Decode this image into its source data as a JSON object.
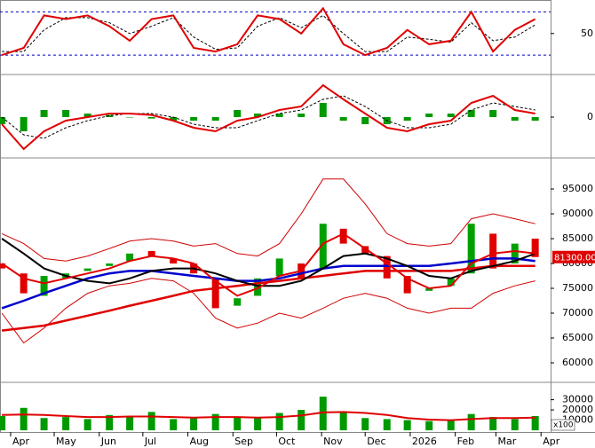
{
  "chart_data": {
    "type": "stock",
    "x": [
      -6,
      9,
      23,
      38,
      53,
      68,
      82,
      97,
      112,
      126,
      141,
      156,
      170,
      185,
      200,
      215,
      229,
      244,
      259,
      273,
      288,
      303,
      317,
      332,
      347,
      361
    ],
    "xlim": [
      -7.3,
      371.6
    ],
    "xticks": [
      {
        "value": 0,
        "label": "Apr"
      },
      {
        "value": 30,
        "label": "May"
      },
      {
        "value": 61,
        "label": "Jun"
      },
      {
        "value": 91,
        "label": "Jul"
      },
      {
        "value": 122,
        "label": "Aug"
      },
      {
        "value": 153,
        "label": "Sep"
      },
      {
        "value": 183,
        "label": "Oct"
      },
      {
        "value": 214,
        "label": "Nov"
      },
      {
        "value": 244,
        "label": "Dec"
      },
      {
        "value": 275,
        "label": "2026"
      },
      {
        "value": 306,
        "label": "Feb"
      },
      {
        "value": 334,
        "label": "Mar"
      },
      {
        "value": 365,
        "label": "Apr"
      }
    ],
    "panels": [
      {
        "type": "line",
        "ylim": [
          -2,
          94
        ],
        "yticks": [
          50
        ],
        "levels": [
          20,
          80
        ],
        "level_color": "#0000cc",
        "series": [
          {
            "color": "#000000",
            "line_width": 1,
            "dashed": true,
            "values": [
              25,
              25,
              55,
              72,
              72,
              65,
              50,
              60,
              72,
              45,
              28,
              30,
              60,
              72,
              58,
              75,
              50,
              25,
              25,
              45,
              42,
              38,
              65,
              40,
              45,
              62
            ]
          },
          {
            "color": "#e00000",
            "line_width": 2,
            "dashed": false,
            "values": [
              20,
              30,
              75,
              70,
              75,
              60,
              40,
              70,
              75,
              30,
              25,
              35,
              75,
              70,
              50,
              85,
              35,
              20,
              30,
              55,
              35,
              40,
              80,
              25,
              55,
              70
            ]
          }
        ]
      },
      {
        "type": "bar",
        "ylim": [
          -5.5,
          5.75
        ],
        "yticks": [
          0
        ],
        "color": "#009900",
        "values": [
          -1,
          -2,
          1,
          1,
          0.5,
          0.3,
          0,
          -0.2,
          -0.5,
          -0.5,
          -0.5,
          1,
          0.5,
          0.5,
          0.5,
          2,
          -0.5,
          -1,
          -1,
          -0.5,
          0.5,
          0.5,
          1,
          1,
          -0.5,
          -0.5
        ],
        "series": [
          {
            "color": "#000000",
            "line_width": 1,
            "dashed": true,
            "values": [
              0,
              -2.5,
              -3,
              -1.5,
              -0.5,
              0.2,
              0.5,
              0.5,
              0,
              -1,
              -1.5,
              -1.5,
              -0.5,
              0.5,
              1,
              2.5,
              3,
              1.5,
              -0.5,
              -1.5,
              -1.5,
              -1,
              1,
              2,
              1.5,
              1
            ]
          },
          {
            "color": "#e00000",
            "line_width": 2,
            "dashed": false,
            "values": [
              -1,
              -4.5,
              -2,
              -0.5,
              0,
              0.5,
              0.5,
              0.3,
              -0.5,
              -1.5,
              -2,
              -0.5,
              0,
              1,
              1.5,
              4.5,
              2.5,
              0.5,
              -1.5,
              -2,
              -1,
              -0.5,
              2,
              3,
              1,
              0.5
            ]
          }
        ]
      },
      {
        "type": "candlestick",
        "ylim": [
          56250,
          100900
        ],
        "yticks": [
          60000,
          65000,
          70000,
          75000,
          80000,
          85000,
          90000,
          95000
        ],
        "up_color": "#00a000",
        "down_color": "#e00000",
        "open": [
          80000,
          78000,
          73500,
          77000,
          78500,
          79500,
          80500,
          82500,
          81000,
          80000,
          77000,
          71500,
          73500,
          77500,
          80000,
          79000,
          87000,
          83500,
          81500,
          77500,
          74500,
          75500,
          78000,
          86000,
          80000,
          85000
        ],
        "close": [
          79000,
          74000,
          77500,
          78000,
          79000,
          80000,
          82000,
          81500,
          80000,
          78000,
          71000,
          73000,
          77000,
          81000,
          77000,
          88000,
          84000,
          82000,
          77000,
          74000,
          75000,
          77000,
          88000,
          79000,
          84000,
          81300
        ],
        "last_price": {
          "value": 81300,
          "label": "81300.00"
        },
        "last_price_color": "#e00000",
        "series": [
          {
            "color": "#d00000",
            "line_width": 1,
            "dashed": false,
            "values": [
              86000,
              84000,
              81000,
              80500,
              81500,
              83000,
              84500,
              85000,
              84500,
              83500,
              84000,
              82000,
              81500,
              84000,
              90000,
              97000,
              97000,
              92000,
              86000,
              84000,
              83500,
              84000,
              89000,
              90000,
              89000,
              88000
            ]
          },
          {
            "color": "#d00000",
            "line_width": 1,
            "dashed": false,
            "values": [
              70000,
              64000,
              67000,
              71000,
              74000,
              75500,
              76000,
              77000,
              76500,
              74000,
              69000,
              67000,
              68000,
              70000,
              69000,
              71000,
              73000,
              74000,
              73000,
              71000,
              70000,
              71000,
              71000,
              74000,
              75500,
              76500
            ]
          },
          {
            "color": "#e00000",
            "line_width": 2.5,
            "dashed": false,
            "values": [
              66500,
              67000,
              67500,
              68500,
              69500,
              70500,
              71500,
              72500,
              73500,
              74500,
              75000,
              75500,
              76000,
              76500,
              77000,
              77500,
              78000,
              78500,
              78500,
              78500,
              78500,
              78500,
              79000,
              79500,
              79500,
              79500
            ]
          },
          {
            "color": "#0000cc",
            "line_width": 2.5,
            "dashed": false,
            "values": [
              71000,
              72500,
              74000,
              75500,
              77000,
              78000,
              78500,
              78500,
              78000,
              77500,
              77000,
              76500,
              76500,
              77000,
              78000,
              79000,
              79500,
              79500,
              79500,
              79500,
              79500,
              80000,
              80500,
              81000,
              81000,
              80500
            ]
          },
          {
            "color": "#000000",
            "line_width": 2,
            "dashed": false,
            "values": [
              85000,
              82000,
              79000,
              77500,
              76500,
              76000,
              77000,
              78500,
              79000,
              79000,
              78000,
              76500,
              75500,
              75500,
              76500,
              79000,
              81500,
              82000,
              81000,
              79500,
              77500,
              77000,
              78500,
              79500,
              80500,
              82000
            ]
          },
          {
            "color": "#e00000",
            "line_width": 2,
            "dashed": false,
            "values": [
              80000,
              77000,
              76000,
              77000,
              78000,
              79000,
              80500,
              81500,
              81000,
              80000,
              76500,
              73500,
              75000,
              77500,
              78500,
              84000,
              86000,
              83000,
              80000,
              77000,
              75000,
              75500,
              80000,
              82000,
              82500,
              82000
            ]
          }
        ]
      },
      {
        "type": "bar",
        "ylim": [
          -1700,
          45300
        ],
        "yticks": [
          10000,
          20000,
          30000
        ],
        "color": "#009900",
        "unit": "x100",
        "values": [
          14000,
          22000,
          12000,
          13000,
          11000,
          15000,
          13000,
          18000,
          11000,
          12000,
          16000,
          13000,
          12000,
          17000,
          20000,
          33000,
          18000,
          12000,
          11000,
          10000,
          9000,
          10000,
          16000,
          13000,
          11000,
          14000
        ],
        "series": [
          {
            "color": "#e00000",
            "line_width": 2,
            "dashed": false,
            "values": [
              15000,
              15500,
              15000,
              14000,
              13000,
              13000,
              13500,
              13500,
              13000,
              12500,
              13000,
              13000,
              12500,
              13000,
              14500,
              17500,
              18000,
              17000,
              15000,
              12000,
              10500,
              10000,
              11000,
              12000,
              12000,
              12500
            ]
          }
        ]
      }
    ]
  }
}
